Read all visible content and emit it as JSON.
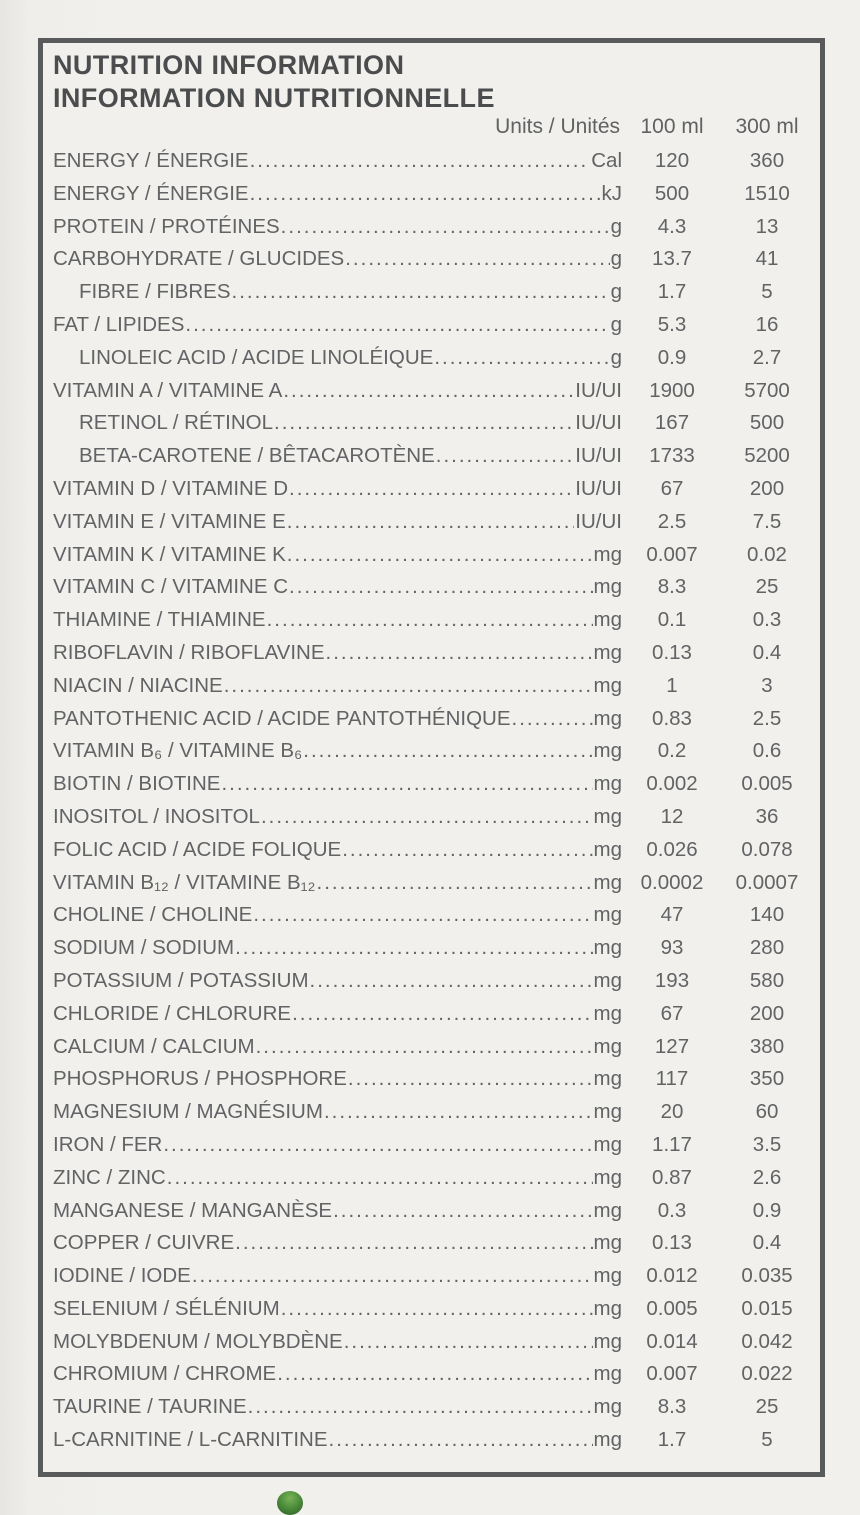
{
  "panel": {
    "title_en": "NUTRITION INFORMATION",
    "title_fr": "INFORMATION NUTRITIONNELLE",
    "columns": {
      "units": "Units / Unités",
      "per_100ml": "100 ml",
      "per_300ml": "300 ml"
    }
  },
  "rows": [
    {
      "label": "ENERGY / ÉNERGIE",
      "indent": false,
      "unit": "Cal",
      "per100": "120",
      "per300": "360"
    },
    {
      "label": "ENERGY / ÉNERGIE",
      "indent": false,
      "unit": "kJ",
      "per100": "500",
      "per300": "1510"
    },
    {
      "label": "PROTEIN / PROTÉINES",
      "indent": false,
      "unit": "g",
      "per100": "4.3",
      "per300": "13"
    },
    {
      "label": "CARBOHYDRATE / GLUCIDES",
      "indent": false,
      "unit": "g",
      "per100": "13.7",
      "per300": "41"
    },
    {
      "label": "FIBRE / FIBRES",
      "indent": true,
      "unit": "g",
      "per100": "1.7",
      "per300": "5"
    },
    {
      "label": "FAT / LIPIDES",
      "indent": false,
      "unit": "g",
      "per100": "5.3",
      "per300": "16"
    },
    {
      "label": "LINOLEIC ACID / ACIDE LINOLÉIQUE",
      "indent": true,
      "unit": "g",
      "per100": "0.9",
      "per300": "2.7"
    },
    {
      "label": "VITAMIN A / VITAMINE A",
      "indent": false,
      "unit": "IU/UI",
      "per100": "1900",
      "per300": "5700"
    },
    {
      "label": "RETINOL / RÉTINOL",
      "indent": true,
      "unit": "IU/UI",
      "per100": "167",
      "per300": "500"
    },
    {
      "label": "BETA-CAROTENE / BÊTACAROTÈNE",
      "indent": true,
      "unit": "IU/UI",
      "per100": "1733",
      "per300": "5200"
    },
    {
      "label": "VITAMIN D / VITAMINE D",
      "indent": false,
      "unit": "IU/UI",
      "per100": "67",
      "per300": "200"
    },
    {
      "label": "VITAMIN E / VITAMINE E",
      "indent": false,
      "unit": "IU/UI",
      "per100": "2.5",
      "per300": "7.5"
    },
    {
      "label": "VITAMIN K / VITAMINE K",
      "indent": false,
      "unit": "mg",
      "per100": "0.007",
      "per300": "0.02"
    },
    {
      "label": "VITAMIN C / VITAMINE C",
      "indent": false,
      "unit": "mg",
      "per100": "8.3",
      "per300": "25"
    },
    {
      "label": "THIAMINE / THIAMINE",
      "indent": false,
      "unit": "mg",
      "per100": "0.1",
      "per300": "0.3"
    },
    {
      "label": "RIBOFLAVIN / RIBOFLAVINE",
      "indent": false,
      "unit": "mg",
      "per100": "0.13",
      "per300": "0.4"
    },
    {
      "label": "NIACIN / NIACINE",
      "indent": false,
      "unit": "mg",
      "per100": "1",
      "per300": "3"
    },
    {
      "label": "PANTOTHENIC ACID / ACIDE PANTOTHÉNIQUE",
      "indent": false,
      "unit": "mg",
      "per100": "0.83",
      "per300": "2.5"
    },
    {
      "label": "VITAMIN B₆ / VITAMINE B₆",
      "indent": false,
      "unit": "mg",
      "per100": "0.2",
      "per300": "0.6"
    },
    {
      "label": "BIOTIN / BIOTINE",
      "indent": false,
      "unit": "mg",
      "per100": "0.002",
      "per300": "0.005"
    },
    {
      "label": "INOSITOL / INOSITOL",
      "indent": false,
      "unit": "mg",
      "per100": "12",
      "per300": "36"
    },
    {
      "label": "FOLIC ACID / ACIDE FOLIQUE",
      "indent": false,
      "unit": "mg",
      "per100": "0.026",
      "per300": "0.078"
    },
    {
      "label": "VITAMIN B₁₂ / VITAMINE B₁₂",
      "indent": false,
      "unit": "mg",
      "per100": "0.0002",
      "per300": "0.0007"
    },
    {
      "label": "CHOLINE / CHOLINE",
      "indent": false,
      "unit": "mg",
      "per100": "47",
      "per300": "140"
    },
    {
      "label": "SODIUM / SODIUM",
      "indent": false,
      "unit": "mg",
      "per100": "93",
      "per300": "280"
    },
    {
      "label": "POTASSIUM / POTASSIUM",
      "indent": false,
      "unit": "mg",
      "per100": "193",
      "per300": "580"
    },
    {
      "label": "CHLORIDE / CHLORURE",
      "indent": false,
      "unit": "mg",
      "per100": "67",
      "per300": "200"
    },
    {
      "label": "CALCIUM / CALCIUM",
      "indent": false,
      "unit": "mg",
      "per100": "127",
      "per300": "380"
    },
    {
      "label": "PHOSPHORUS / PHOSPHORE",
      "indent": false,
      "unit": "mg",
      "per100": "117",
      "per300": "350"
    },
    {
      "label": "MAGNESIUM / MAGNÉSIUM",
      "indent": false,
      "unit": "mg",
      "per100": "20",
      "per300": "60"
    },
    {
      "label": "IRON / FER",
      "indent": false,
      "unit": "mg",
      "per100": "1.17",
      "per300": "3.5"
    },
    {
      "label": "ZINC / ZINC",
      "indent": false,
      "unit": "mg",
      "per100": "0.87",
      "per300": "2.6"
    },
    {
      "label": "MANGANESE / MANGANÈSE",
      "indent": false,
      "unit": "mg",
      "per100": "0.3",
      "per300": "0.9"
    },
    {
      "label": "COPPER / CUIVRE",
      "indent": false,
      "unit": "mg",
      "per100": "0.13",
      "per300": "0.4"
    },
    {
      "label": "IODINE / IODE",
      "indent": false,
      "unit": "mg",
      "per100": "0.012",
      "per300": "0.035"
    },
    {
      "label": "SELENIUM / SÉLÉNIUM",
      "indent": false,
      "unit": "mg",
      "per100": "0.005",
      "per300": "0.015"
    },
    {
      "label": "MOLYBDENUM / MOLYBDÈNE",
      "indent": false,
      "unit": "mg",
      "per100": "0.014",
      "per300": "0.042"
    },
    {
      "label": "CHROMIUM / CHROME",
      "indent": false,
      "unit": "mg",
      "per100": "0.007",
      "per300": "0.022"
    },
    {
      "label": "TAURINE / TAURINE",
      "indent": false,
      "unit": "mg",
      "per100": "8.3",
      "per300": "25"
    },
    {
      "label": "L-CARNITINE / L-CARNITINE",
      "indent": false,
      "unit": "mg",
      "per100": "1.7",
      "per300": "5"
    }
  ],
  "colors": {
    "border": "#595a5c",
    "text": "#616365",
    "title_text": "#4b4c4e",
    "background": "#f1f0ec",
    "logo_dot_green": "#4e8f3c"
  }
}
